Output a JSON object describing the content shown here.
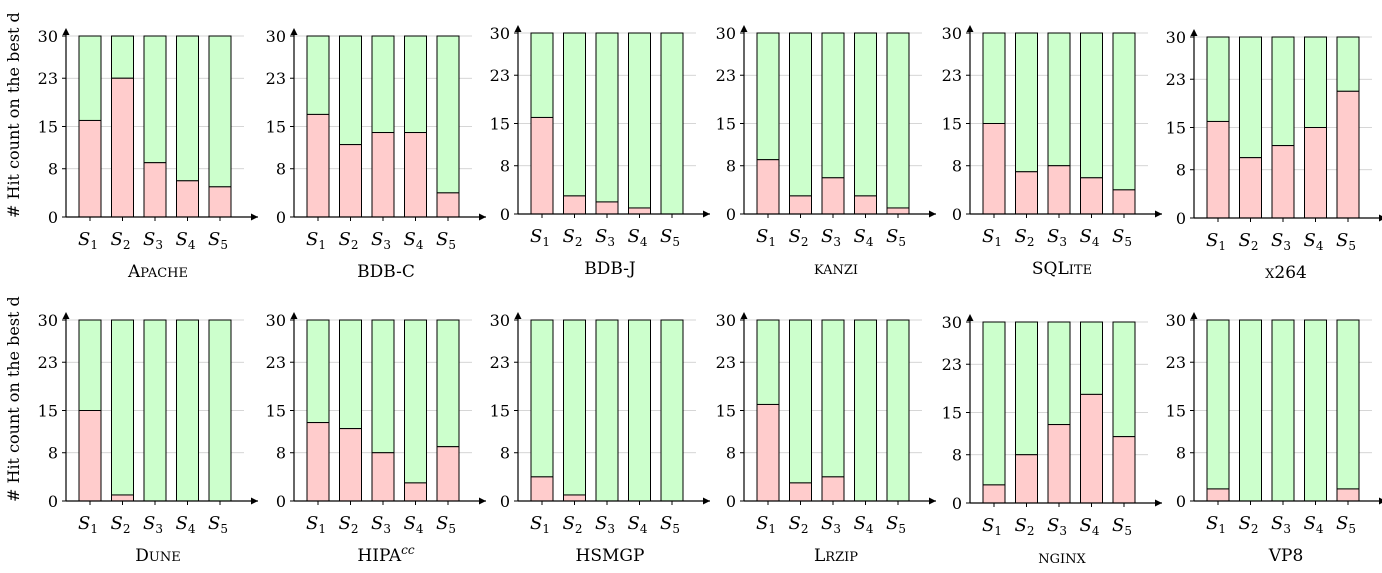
{
  "figure": {
    "ylabel": "# Hit count on the best d"
  },
  "colors": {
    "miss": "#ffcccc",
    "hit": "#ccffcc",
    "stroke": "#000000",
    "grid": "#c8c8c8"
  },
  "chart_data": [
    {
      "type": "bar",
      "title": "Apache",
      "categories": [
        "S1",
        "S2",
        "S3",
        "S4",
        "S5"
      ],
      "yticks": [
        0,
        8,
        15,
        23,
        30
      ],
      "ylim": [
        0,
        30
      ],
      "grid": true,
      "series": [
        {
          "values": [
            16,
            23,
            9,
            6,
            5
          ]
        },
        {
          "values": [
            14,
            7,
            21,
            24,
            25
          ]
        }
      ]
    },
    {
      "type": "bar",
      "title": "BDB-C",
      "categories": [
        "S1",
        "S2",
        "S3",
        "S4",
        "S5"
      ],
      "yticks": [
        0,
        8,
        15,
        23,
        30
      ],
      "ylim": [
        0,
        30
      ],
      "grid": true,
      "series": [
        {
          "values": [
            17,
            12,
            14,
            14,
            4
          ]
        },
        {
          "values": [
            13,
            18,
            16,
            16,
            26
          ]
        }
      ]
    },
    {
      "type": "bar",
      "title": "BDB-J",
      "categories": [
        "S1",
        "S2",
        "S3",
        "S4",
        "S5"
      ],
      "yticks": [
        0,
        8,
        15,
        23,
        30
      ],
      "ylim": [
        0,
        30
      ],
      "grid": true,
      "series": [
        {
          "values": [
            16,
            3,
            2,
            1,
            0
          ]
        },
        {
          "values": [
            14,
            27,
            28,
            29,
            30
          ]
        }
      ]
    },
    {
      "type": "bar",
      "title": "kanzi",
      "categories": [
        "S1",
        "S2",
        "S3",
        "S4",
        "S5"
      ],
      "yticks": [
        0,
        8,
        15,
        23,
        30
      ],
      "ylim": [
        0,
        30
      ],
      "grid": true,
      "series": [
        {
          "values": [
            9,
            3,
            6,
            3,
            1
          ]
        },
        {
          "values": [
            21,
            27,
            24,
            27,
            29
          ]
        }
      ]
    },
    {
      "type": "bar",
      "title": "SQLite",
      "categories": [
        "S1",
        "S2",
        "S3",
        "S4",
        "S5"
      ],
      "yticks": [
        0,
        8,
        15,
        23,
        30
      ],
      "ylim": [
        0,
        30
      ],
      "grid": true,
      "series": [
        {
          "values": [
            15,
            7,
            8,
            6,
            4
          ]
        },
        {
          "values": [
            15,
            23,
            22,
            24,
            26
          ]
        }
      ]
    },
    {
      "type": "bar",
      "title": "x264",
      "categories": [
        "S1",
        "S2",
        "S3",
        "S4",
        "S5"
      ],
      "yticks": [
        0,
        8,
        15,
        23,
        30
      ],
      "ylim": [
        0,
        30
      ],
      "grid": true,
      "series": [
        {
          "values": [
            16,
            10,
            12,
            15,
            21
          ]
        },
        {
          "values": [
            14,
            20,
            18,
            15,
            9
          ]
        }
      ]
    },
    {
      "type": "bar",
      "title": "Dune",
      "categories": [
        "S1",
        "S2",
        "S3",
        "S4",
        "S5"
      ],
      "yticks": [
        0,
        8,
        15,
        23,
        30
      ],
      "ylim": [
        0,
        30
      ],
      "grid": true,
      "series": [
        {
          "values": [
            15,
            1,
            0,
            0,
            0
          ]
        },
        {
          "values": [
            15,
            29,
            30,
            30,
            30
          ]
        }
      ]
    },
    {
      "type": "bar",
      "title": "HIPAcc",
      "categories": [
        "S1",
        "S2",
        "S3",
        "S4",
        "S5"
      ],
      "yticks": [
        0,
        8,
        15,
        23,
        30
      ],
      "ylim": [
        0,
        30
      ],
      "grid": true,
      "series": [
        {
          "values": [
            13,
            12,
            8,
            3,
            9
          ]
        },
        {
          "values": [
            17,
            18,
            22,
            27,
            21
          ]
        }
      ]
    },
    {
      "type": "bar",
      "title": "HSMGP",
      "categories": [
        "S1",
        "S2",
        "S3",
        "S4",
        "S5"
      ],
      "yticks": [
        0,
        8,
        15,
        23,
        30
      ],
      "ylim": [
        0,
        30
      ],
      "grid": true,
      "series": [
        {
          "values": [
            4,
            1,
            0,
            0,
            0
          ]
        },
        {
          "values": [
            26,
            29,
            30,
            30,
            30
          ]
        }
      ]
    },
    {
      "type": "bar",
      "title": "Lrzip",
      "categories": [
        "S1",
        "S2",
        "S3",
        "S4",
        "S5"
      ],
      "yticks": [
        0,
        8,
        15,
        23,
        30
      ],
      "ylim": [
        0,
        30
      ],
      "grid": true,
      "series": [
        {
          "values": [
            16,
            3,
            4,
            0,
            0
          ]
        },
        {
          "values": [
            14,
            27,
            26,
            30,
            30
          ]
        }
      ]
    },
    {
      "type": "bar",
      "title": "nginx",
      "categories": [
        "S1",
        "S2",
        "S3",
        "S4",
        "S5"
      ],
      "yticks": [
        0,
        8,
        15,
        23,
        30
      ],
      "ylim": [
        0,
        30
      ],
      "grid": true,
      "series": [
        {
          "values": [
            3,
            8,
            13,
            18,
            11
          ]
        },
        {
          "values": [
            27,
            22,
            17,
            12,
            19
          ]
        }
      ]
    },
    {
      "type": "bar",
      "title": "VP8",
      "categories": [
        "S1",
        "S2",
        "S3",
        "S4",
        "S5"
      ],
      "yticks": [
        0,
        8,
        15,
        23,
        30
      ],
      "ylim": [
        0,
        30
      ],
      "grid": true,
      "series": [
        {
          "values": [
            2,
            0,
            0,
            0,
            2
          ]
        },
        {
          "values": [
            28,
            30,
            30,
            30,
            28
          ]
        }
      ]
    }
  ]
}
